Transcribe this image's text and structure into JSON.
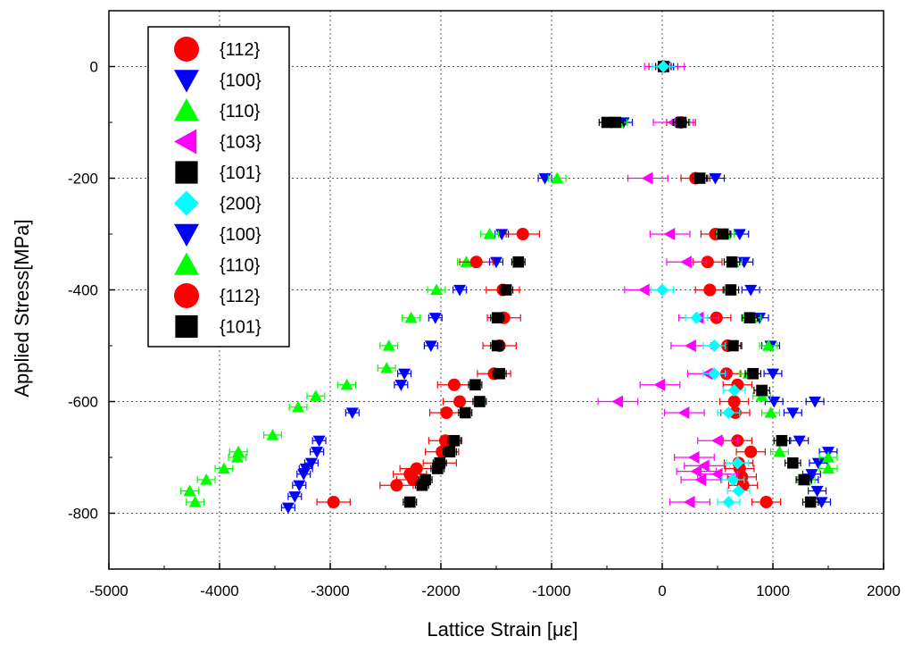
{
  "chart_data": {
    "type": "scatter",
    "xlabel": "Lattice Strain [με]",
    "ylabel": "Applied Stress[MPa]",
    "xlim": [
      -5000,
      2000
    ],
    "ylim": [
      -900,
      100
    ],
    "xticks": [
      -5000,
      -4000,
      -3000,
      -2000,
      -1000,
      0,
      1000,
      2000
    ],
    "yticks": [
      0,
      -200,
      -400,
      -600,
      -800
    ],
    "grid": true,
    "error_bars": "horizontal",
    "legend_position": "top-left",
    "series": [
      {
        "name": "{112}",
        "marker": "circle",
        "color": "#ff0000",
        "err": 130,
        "points": [
          [
            10,
            0
          ],
          [
            170,
            -100
          ],
          [
            300,
            -200
          ],
          [
            480,
            -300
          ],
          [
            410,
            -350
          ],
          [
            430,
            -400
          ],
          [
            490,
            -450
          ],
          [
            590,
            -500
          ],
          [
            580,
            -550
          ],
          [
            680,
            -570
          ],
          [
            650,
            -600
          ],
          [
            660,
            -620
          ],
          [
            680,
            -670
          ],
          [
            800,
            -690
          ],
          [
            690,
            -710
          ],
          [
            700,
            -720
          ],
          [
            720,
            -735
          ],
          [
            730,
            -750
          ],
          [
            940,
            -780
          ]
        ]
      },
      {
        "name": "{100}",
        "marker": "triangle-down",
        "color": "#0000ff",
        "err": 80,
        "points": [
          [
            20,
            0
          ],
          [
            -350,
            -100
          ],
          [
            480,
            -200
          ],
          [
            700,
            -300
          ],
          [
            740,
            -350
          ],
          [
            800,
            -400
          ],
          [
            880,
            -450
          ],
          [
            980,
            -500
          ],
          [
            1000,
            -550
          ],
          [
            1010,
            -600
          ],
          [
            1380,
            -600
          ],
          [
            1180,
            -620
          ],
          [
            1240,
            -670
          ],
          [
            1500,
            -690
          ],
          [
            1410,
            -710
          ],
          [
            1350,
            -730
          ],
          [
            1330,
            -740
          ],
          [
            1400,
            -760
          ],
          [
            1440,
            -780
          ]
        ]
      },
      {
        "name": "{110}",
        "marker": "triangle-up",
        "color": "#00ff00",
        "err": 80,
        "points": [
          [
            -400,
            -100
          ],
          [
            170,
            -100
          ],
          [
            570,
            -300
          ],
          [
            640,
            -350
          ],
          [
            810,
            -450
          ],
          [
            960,
            -500
          ],
          [
            780,
            -550
          ],
          [
            900,
            -590
          ],
          [
            980,
            -620
          ],
          [
            1060,
            -690
          ],
          [
            1500,
            -700
          ],
          [
            1500,
            -720
          ],
          [
            1300,
            -740
          ]
        ]
      },
      {
        "name": "{103}",
        "marker": "triangle-left",
        "color": "#ff00ff",
        "err": 180,
        "points": [
          [
            20,
            0
          ],
          [
            100,
            -100
          ],
          [
            -130,
            -200
          ],
          [
            70,
            -300
          ],
          [
            220,
            -350
          ],
          [
            -160,
            -400
          ],
          [
            330,
            -450
          ],
          [
            260,
            -500
          ],
          [
            410,
            -550
          ],
          [
            -20,
            -570
          ],
          [
            -400,
            -600
          ],
          [
            200,
            -620
          ],
          [
            500,
            -670
          ],
          [
            290,
            -700
          ],
          [
            380,
            -715
          ],
          [
            310,
            -725
          ],
          [
            500,
            -730
          ],
          [
            350,
            -740
          ],
          [
            250,
            -780
          ]
        ]
      },
      {
        "name": "{101}",
        "marker": "square",
        "color": "#000000",
        "err": 70,
        "points": [
          [
            10,
            0
          ],
          [
            -500,
            -100
          ],
          [
            -420,
            -100
          ],
          [
            170,
            -100
          ],
          [
            340,
            -200
          ],
          [
            550,
            -300
          ],
          [
            630,
            -350
          ],
          [
            620,
            -400
          ],
          [
            790,
            -450
          ],
          [
            640,
            -500
          ],
          [
            820,
            -550
          ],
          [
            900,
            -580
          ],
          [
            1080,
            -670
          ],
          [
            1180,
            -710
          ],
          [
            1280,
            -740
          ],
          [
            1340,
            -780
          ]
        ]
      },
      {
        "name": "{200}",
        "marker": "diamond",
        "color": "#00ffff",
        "err": 100,
        "points": [
          [
            10,
            0
          ],
          [
            0,
            -400
          ],
          [
            310,
            -450
          ],
          [
            470,
            -500
          ],
          [
            470,
            -550
          ],
          [
            650,
            -580
          ],
          [
            600,
            -620
          ],
          [
            680,
            -710
          ],
          [
            640,
            -740
          ],
          [
            690,
            -760
          ],
          [
            600,
            -780
          ]
        ]
      },
      {
        "name": "{100}",
        "marker": "triangle-down",
        "color": "#0000ff",
        "err": 60,
        "points": [
          [
            -1060,
            -200
          ],
          [
            -1450,
            -300
          ],
          [
            -1500,
            -350
          ],
          [
            -1830,
            -400
          ],
          [
            -2050,
            -450
          ],
          [
            -2090,
            -500
          ],
          [
            -2330,
            -550
          ],
          [
            -2360,
            -570
          ],
          [
            -2800,
            -620
          ],
          [
            -3100,
            -670
          ],
          [
            -3120,
            -690
          ],
          [
            -3170,
            -710
          ],
          [
            -3220,
            -720
          ],
          [
            -3240,
            -730
          ],
          [
            -3280,
            -750
          ],
          [
            -3320,
            -770
          ],
          [
            -3380,
            -790
          ]
        ]
      },
      {
        "name": "{110}",
        "marker": "triangle-up",
        "color": "#00ff00",
        "err": 80,
        "points": [
          [
            -950,
            -200
          ],
          [
            -1560,
            -300
          ],
          [
            -1770,
            -350
          ],
          [
            -2040,
            -400
          ],
          [
            -2270,
            -450
          ],
          [
            -2470,
            -500
          ],
          [
            -2490,
            -540
          ],
          [
            -2850,
            -570
          ],
          [
            -3130,
            -590
          ],
          [
            -3290,
            -610
          ],
          [
            -3520,
            -660
          ],
          [
            -3830,
            -690
          ],
          [
            -3840,
            -700
          ],
          [
            -3960,
            -720
          ],
          [
            -4120,
            -740
          ],
          [
            -4270,
            -760
          ],
          [
            -4220,
            -780
          ]
        ]
      },
      {
        "name": "{112}",
        "marker": "circle",
        "color": "#ff0000",
        "err": 150,
        "points": [
          [
            -1260,
            -300
          ],
          [
            -1680,
            -350
          ],
          [
            -1440,
            -400
          ],
          [
            -1430,
            -450
          ],
          [
            -1470,
            -500
          ],
          [
            -1520,
            -550
          ],
          [
            -1880,
            -570
          ],
          [
            -1830,
            -600
          ],
          [
            -1950,
            -620
          ],
          [
            -1960,
            -670
          ],
          [
            -1990,
            -690
          ],
          [
            -2010,
            -710
          ],
          [
            -2220,
            -720
          ],
          [
            -2280,
            -730
          ],
          [
            -2250,
            -740
          ],
          [
            -2400,
            -750
          ],
          [
            -2970,
            -780
          ]
        ]
      },
      {
        "name": "{101}",
        "marker": "square",
        "color": "#000000",
        "err": 60,
        "points": [
          [
            -1300,
            -350
          ],
          [
            -1410,
            -400
          ],
          [
            -1490,
            -450
          ],
          [
            -1490,
            -500
          ],
          [
            -1470,
            -550
          ],
          [
            -1690,
            -570
          ],
          [
            -1650,
            -600
          ],
          [
            -1780,
            -620
          ],
          [
            -1880,
            -670
          ],
          [
            -1920,
            -690
          ],
          [
            -2010,
            -710
          ],
          [
            -2030,
            -720
          ],
          [
            -2140,
            -740
          ],
          [
            -2170,
            -750
          ],
          [
            -2280,
            -780
          ]
        ]
      }
    ]
  }
}
